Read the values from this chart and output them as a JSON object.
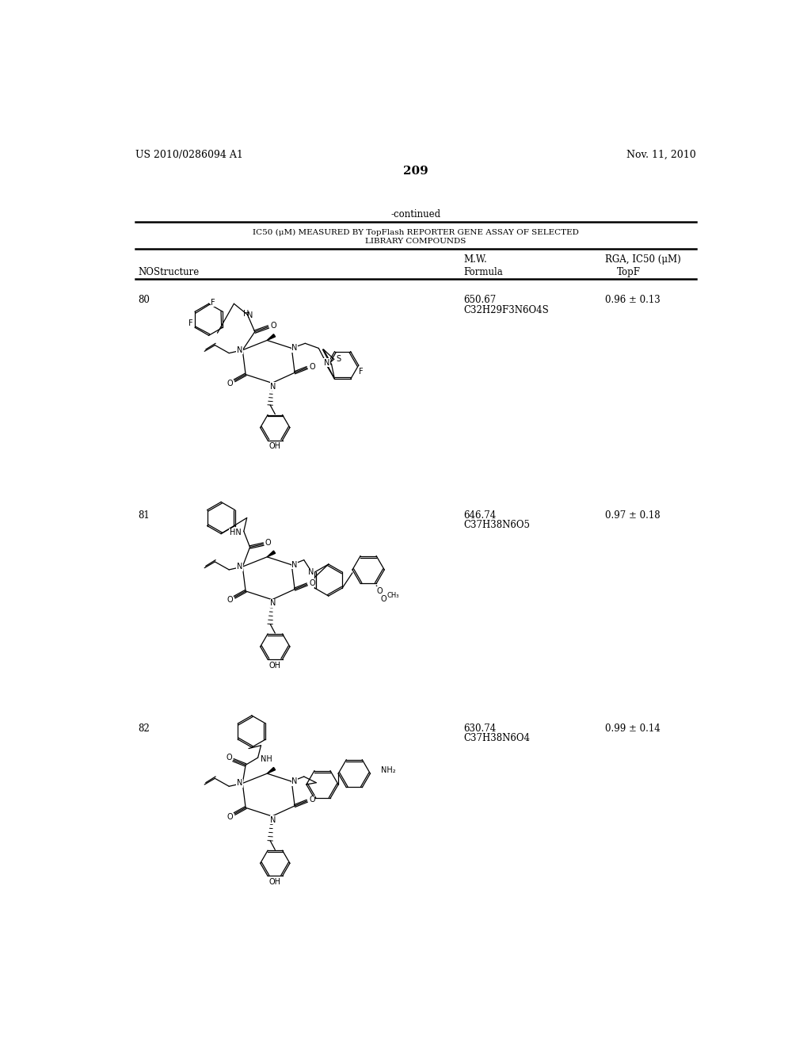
{
  "page_number": "209",
  "left_header": "US 2010/0286094 A1",
  "right_header": "Nov. 11, 2010",
  "continued_text": "-continued",
  "table_title_line1": "IC50 (μM) MEASURED BY TopFlash REPORTER GENE ASSAY OF SELECTED",
  "table_title_line2": "LIBRARY COMPOUNDS",
  "col1_header": "NO",
  "col2_header": "Structure",
  "col3_header_line1": "M.W.",
  "col3_header_line2": "Formula",
  "col4_header_line1": "RGA, IC50 (μM)",
  "col4_header_line2": "TopF",
  "compounds": [
    {
      "no": "80",
      "mw": "650.67",
      "formula": "C32H29F3N6O4S",
      "ic50": "0.96 ± 0.13"
    },
    {
      "no": "81",
      "mw": "646.74",
      "formula": "C37H38N6O5",
      "ic50": "0.97 ± 0.18"
    },
    {
      "no": "82",
      "mw": "630.74",
      "formula": "C37H38N6O4",
      "ic50": "0.99 ± 0.14"
    }
  ],
  "background_color": "#ffffff",
  "text_color": "#000000",
  "line_color": "#000000"
}
